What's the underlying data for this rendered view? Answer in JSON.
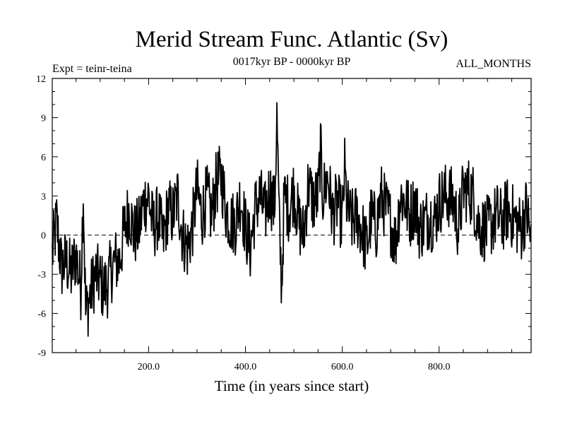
{
  "chart_data": {
    "type": "line",
    "title": "Merid Stream Func. Atlantic (Sv)",
    "experiment_label": "Expt = teinr-teina",
    "period_label": "0017kyr BP - 0000kyr BP",
    "season_label": "ALL_MONTHS",
    "xlabel": "Time (in years since start)",
    "ylabel": "",
    "xlim": [
      1,
      990
    ],
    "ylim": [
      -9,
      12
    ],
    "xticks": [
      200,
      400,
      600,
      800
    ],
    "xtick_labels": [
      "200.0",
      "400.0",
      "600.0",
      "800.0"
    ],
    "yticks": [
      -9,
      -6,
      -3,
      0,
      3,
      6,
      9,
      12
    ],
    "ytick_labels": [
      "-9",
      "-6",
      "-3",
      "0",
      "3",
      "6",
      "9",
      "12"
    ],
    "zero_line": {
      "value": 0,
      "style": "dashed"
    },
    "grid": false,
    "series": [
      {
        "name": "Merid Stream Func. Atlantic",
        "x": [
          1,
          10,
          20,
          30,
          40,
          50,
          60,
          65,
          70,
          80,
          90,
          100,
          105,
          110,
          115,
          120,
          130,
          140,
          150,
          160,
          170,
          180,
          190,
          200,
          205,
          210,
          220,
          230,
          240,
          250,
          260,
          270,
          280,
          290,
          300,
          310,
          320,
          330,
          340,
          350,
          360,
          370,
          380,
          390,
          400,
          410,
          420,
          430,
          440,
          450,
          460,
          465,
          470,
          475,
          480,
          490,
          500,
          510,
          520,
          530,
          540,
          550,
          555,
          560,
          570,
          580,
          590,
          600,
          605,
          610,
          620,
          630,
          640,
          650,
          660,
          670,
          680,
          690,
          700,
          710,
          720,
          730,
          740,
          750,
          760,
          770,
          780,
          790,
          800,
          810,
          820,
          830,
          840,
          850,
          860,
          870,
          880,
          890,
          900,
          910,
          920,
          930,
          940,
          950,
          960,
          970,
          980,
          990
        ],
        "values": [
          -1.5,
          1.0,
          -2.5,
          -2.0,
          -3.0,
          -1.5,
          -4.0,
          3.5,
          -6.0,
          -4.5,
          -3.0,
          -3.5,
          -4.0,
          -4.0,
          -3.8,
          -3.0,
          -2.0,
          -2.0,
          0.5,
          2.0,
          0.0,
          0.5,
          2.5,
          3.0,
          1.5,
          0.5,
          1.5,
          -0.5,
          2.0,
          1.5,
          3.0,
          0.0,
          -1.0,
          0.5,
          3.5,
          1.5,
          3.0,
          1.5,
          4.0,
          4.5,
          2.0,
          1.0,
          1.0,
          3.0,
          0.5,
          -1.0,
          2.0,
          3.0,
          1.5,
          3.5,
          2.0,
          9.0,
          0.5,
          -4.0,
          3.0,
          2.0,
          3.5,
          1.0,
          0.0,
          4.0,
          2.5,
          3.0,
          6.5,
          3.0,
          4.5,
          1.5,
          2.5,
          1.0,
          5.0,
          2.0,
          1.0,
          1.5,
          0.5,
          -1.0,
          1.5,
          0.5,
          3.0,
          2.0,
          1.0,
          -0.5,
          3.0,
          2.5,
          1.5,
          2.5,
          0.5,
          1.0,
          1.5,
          1.0,
          2.5,
          3.0,
          3.0,
          2.5,
          0.5,
          3.5,
          3.5,
          3.0,
          1.0,
          0.5,
          0.5,
          1.0,
          1.5,
          1.0,
          2.0,
          1.5,
          1.0,
          0.5,
          2.0,
          -0.5
        ]
      }
    ]
  }
}
